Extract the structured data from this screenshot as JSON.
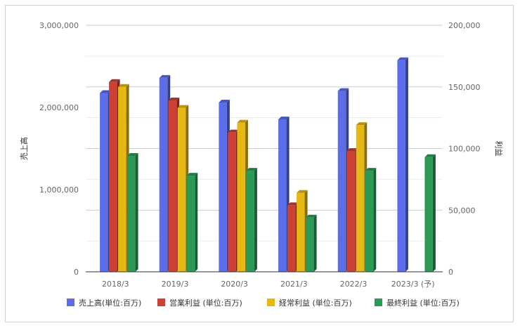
{
  "chart_data": {
    "type": "bar",
    "categories": [
      "2018/3",
      "2019/3",
      "2020/3",
      "2021/3",
      "2022/3",
      "2023/3 (予)"
    ],
    "y_left": {
      "label": "売上高",
      "min": 0,
      "max": 3000000,
      "ticks": [
        "0",
        "1,000,000",
        "2,000,000",
        "3,000,000"
      ]
    },
    "y_right": {
      "label": "利益",
      "min": 0,
      "max": 200000,
      "ticks": [
        "0",
        "50,000",
        "100,000",
        "150,000",
        "200,000"
      ]
    },
    "series": [
      {
        "name": "売上高(単位:百万)",
        "axis": "left",
        "color": "#5b6de8",
        "values": [
          2175000,
          2360000,
          2060000,
          1855000,
          2200000,
          2575000
        ]
      },
      {
        "name": "営業利益 (単位:百万)",
        "axis": "right",
        "color": "#cc4036",
        "values": [
          154000,
          139000,
          113000,
          54000,
          98000,
          null
        ]
      },
      {
        "name": "経常利益 (単位:百万)",
        "axis": "right",
        "color": "#e6b813",
        "values": [
          150000,
          133000,
          121000,
          64000,
          119000,
          null
        ]
      },
      {
        "name": "最終利益 (単位:百万)",
        "axis": "right",
        "color": "#2c9a57",
        "values": [
          94000,
          78000,
          82000,
          44000,
          82000,
          93000
        ]
      }
    ],
    "grid": true,
    "minor_grid": true,
    "legend_position": "bottom",
    "style": "3d-bar"
  }
}
